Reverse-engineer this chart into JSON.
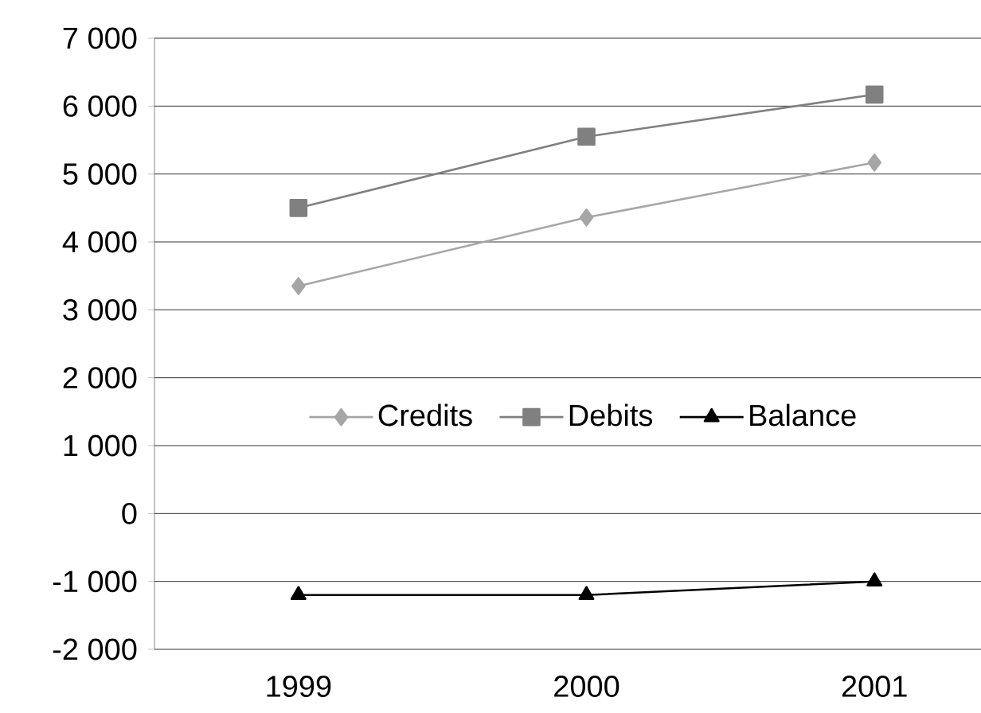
{
  "chart_data": {
    "type": "line",
    "categories": [
      "1999",
      "2000",
      "2001"
    ],
    "series": [
      {
        "name": "Credits",
        "color": "#a6a6a6",
        "marker": "diamond",
        "values": [
          3350,
          4360,
          5170
        ]
      },
      {
        "name": "Debits",
        "color": "#808080",
        "marker": "square",
        "values": [
          4500,
          5550,
          6170
        ]
      },
      {
        "name": "Balance",
        "color": "#000000",
        "marker": "triangle",
        "values": [
          -1200,
          -1200,
          -1000
        ]
      }
    ],
    "ylim": [
      -2000,
      7000
    ],
    "yticks": [
      {
        "value": -2000,
        "label": "-2 000"
      },
      {
        "value": -1000,
        "label": "-1 000"
      },
      0,
      {
        "value": 1000,
        "label": "1 000"
      },
      {
        "value": 2000,
        "label": "2 000"
      },
      {
        "value": 3000,
        "label": "3 000"
      },
      {
        "value": 4000,
        "label": "4 000"
      },
      {
        "value": 5000,
        "label": "5 000"
      },
      {
        "value": 6000,
        "label": "6 000"
      },
      {
        "value": 7000,
        "label": "7 000"
      }
    ],
    "grid": "y",
    "legend": "center",
    "line_style": "solid"
  }
}
